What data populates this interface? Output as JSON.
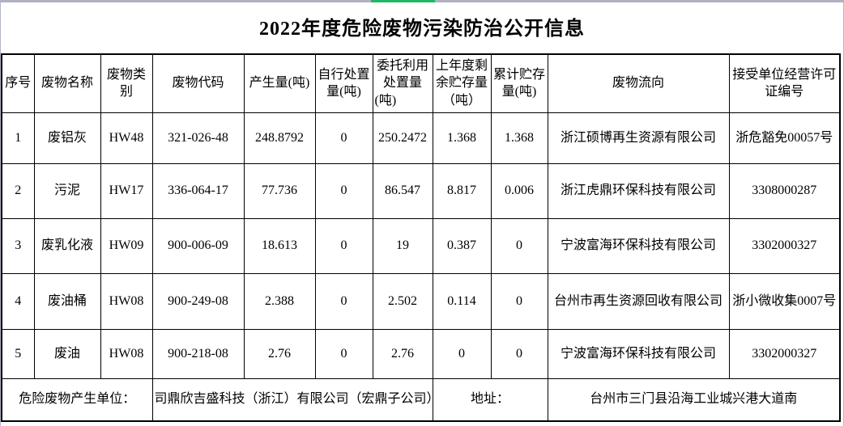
{
  "page": {
    "top_bar": {
      "track_color": "#b0b2c3",
      "progress_color": "#1fb864"
    }
  },
  "title": "2022年度危险废物污染防治公开信息",
  "table": {
    "columns": [
      {
        "key": "index",
        "label": "序号",
        "bold": false
      },
      {
        "key": "name",
        "label": "废物名称",
        "bold": false
      },
      {
        "key": "category",
        "label": "废物类别",
        "bold": false
      },
      {
        "key": "code",
        "label": "废物代码",
        "bold": true
      },
      {
        "key": "produced",
        "label": "产生量(吨)",
        "bold": true
      },
      {
        "key": "self_disposed",
        "label": "自行处置量(吨)",
        "bold": false
      },
      {
        "key": "entrusted",
        "label": "委托利用处置量(吨)",
        "bold": false
      },
      {
        "key": "prev_storage",
        "label": "上年度剩余贮存量（吨）",
        "bold": true
      },
      {
        "key": "cum_storage",
        "label": "累计贮存量(吨)",
        "bold": false
      },
      {
        "key": "flow",
        "label": "废物流向",
        "bold": false
      },
      {
        "key": "license",
        "label": "接受单位经营许可证编号",
        "bold": false
      }
    ],
    "rows": [
      {
        "cells": [
          "1",
          "废铝灰",
          "HW48",
          "321-026-48",
          "248.8792",
          "0",
          "250.2472",
          "1.368",
          "1.368",
          "浙江硕博再生资源有限公司",
          "浙危豁免00057号"
        ],
        "bold": [
          false,
          true,
          true,
          true,
          true,
          false,
          false,
          true,
          false,
          false,
          false
        ]
      },
      {
        "cells": [
          "2",
          "污泥",
          "HW17",
          "336-064-17",
          "77.736",
          "0",
          "86.547",
          "8.817",
          "0.006",
          "浙江虎鼎环保科技有限公司",
          "3308000287"
        ],
        "bold": [
          false,
          false,
          false,
          false,
          false,
          false,
          false,
          false,
          false,
          false,
          false
        ]
      },
      {
        "cells": [
          "3",
          "废乳化液",
          "HW09",
          "900-006-09",
          "18.613",
          "0",
          "19",
          "0.387",
          "0",
          "宁波富海环保科技有限公司",
          "3302000327"
        ],
        "bold": [
          false,
          false,
          false,
          false,
          false,
          false,
          false,
          false,
          false,
          false,
          false
        ]
      },
      {
        "cells": [
          "4",
          "废油桶",
          "HW08",
          "900-249-08",
          "2.388",
          "0",
          "2.502",
          "0.114",
          "0",
          "台州市再生资源回收有限公司",
          "浙小微收集0007号"
        ],
        "bold": [
          false,
          false,
          false,
          false,
          false,
          false,
          false,
          false,
          false,
          false,
          false
        ]
      },
      {
        "cells": [
          "5",
          "废油",
          "HW08",
          "900-218-08",
          "2.76",
          "0",
          "2.76",
          "0",
          "0",
          "宁波富海环保科技有限公司",
          "3302000327"
        ],
        "bold": [
          false,
          false,
          false,
          false,
          false,
          false,
          false,
          false,
          false,
          false,
          false
        ]
      }
    ],
    "footer": {
      "producer_label": "危险废物产生单位：",
      "producer_value": "司鼎欣吉盛科技（浙江）有限公司（宏鼎子公司）",
      "address_label": "地址：",
      "address_value": "台州市三门县沿海工业城兴港大道南"
    }
  }
}
